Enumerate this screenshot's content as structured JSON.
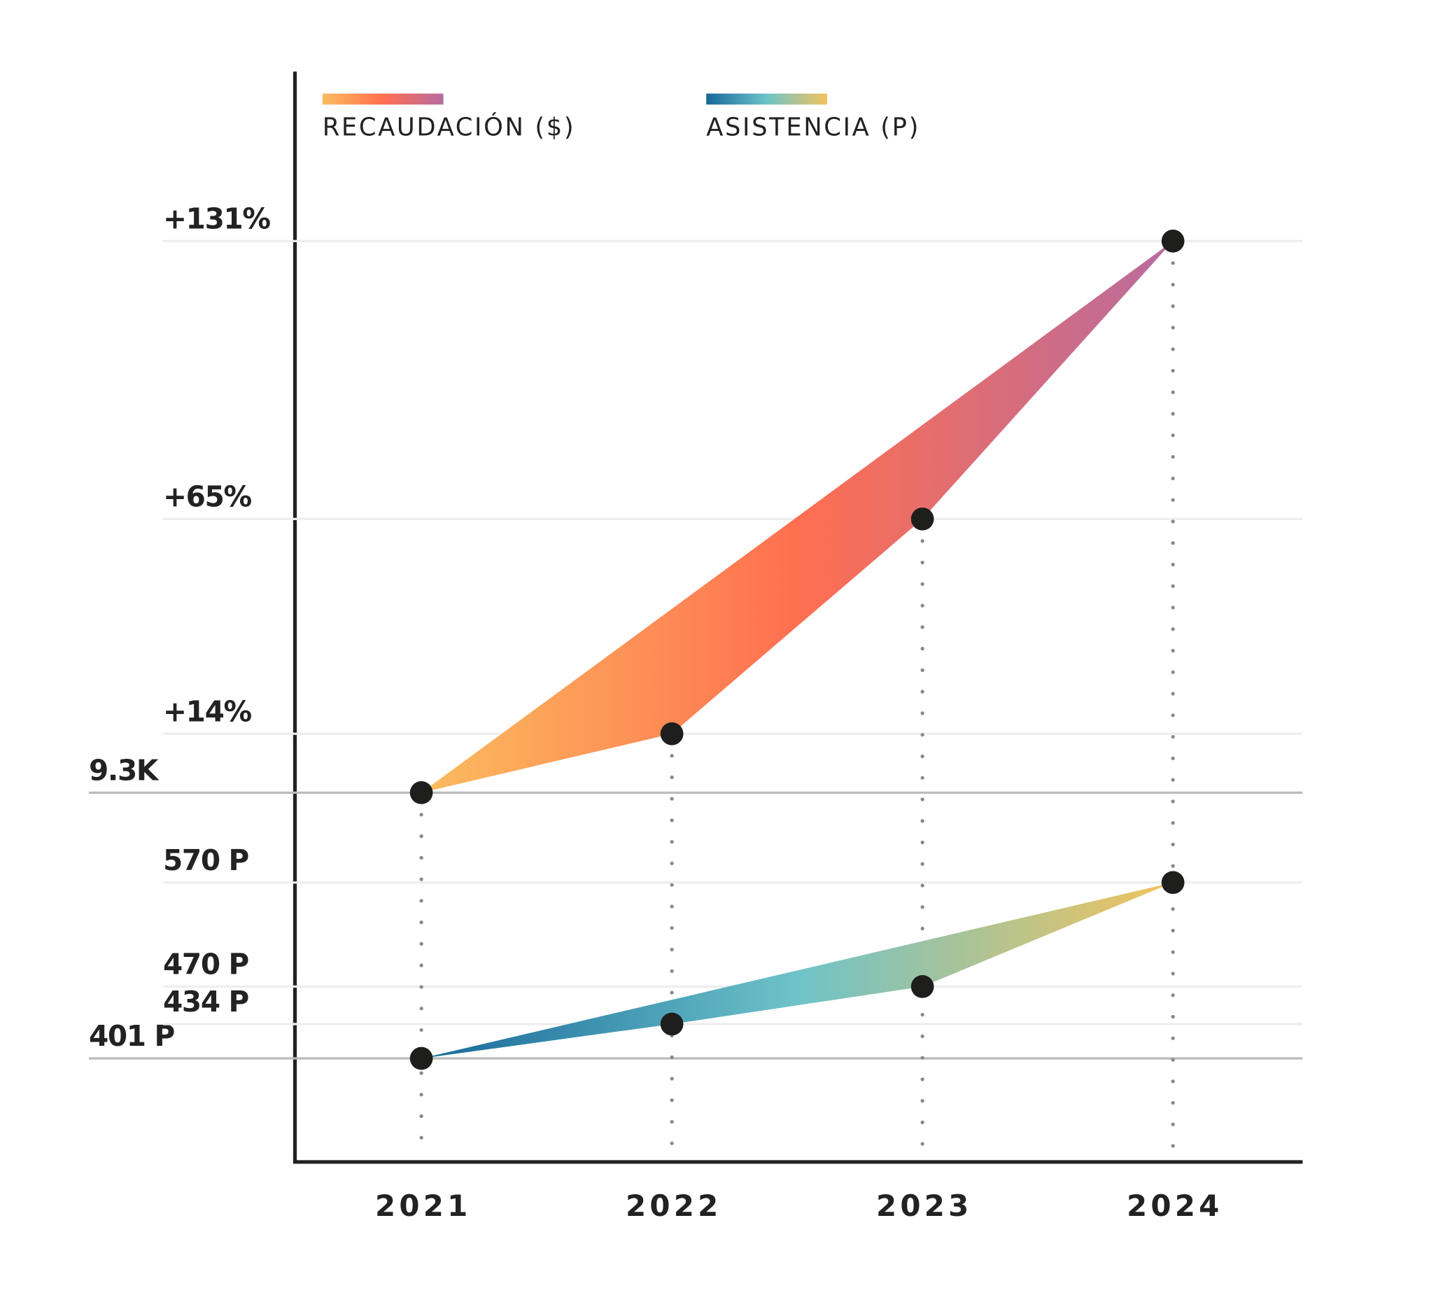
{
  "chart_data": {
    "type": "ribbon",
    "categories": [
      "2021",
      "2022",
      "2023",
      "2024"
    ],
    "series": [
      {
        "name": "RECAUDACIÓN ($)",
        "color": [
          "#fbbc5e",
          "#ff6f50",
          "#b86b9f"
        ],
        "values": [
          0,
          14,
          65,
          131
        ]
      },
      {
        "name": "ASISTENCIA (P)",
        "color": [
          "#16689a",
          "#6ec3c9",
          "#f3c35c"
        ],
        "values": [
          401,
          434,
          470,
          570
        ],
        "axis": "y2"
      }
    ],
    "ylim": [
      0,
      131
    ],
    "yticks": [
      {
        "value": 0,
        "label": "9.3K"
      },
      {
        "value": 14,
        "label": "+14%"
      },
      {
        "value": 65,
        "label": "+65%"
      },
      {
        "value": 131,
        "label": "+131%"
      }
    ],
    "y2lim": [
      401,
      570
    ],
    "y2ticks": [
      {
        "value": 401,
        "label": "401 P"
      },
      {
        "value": 434,
        "label": "434 P"
      },
      {
        "value": 470,
        "label": "470 P"
      },
      {
        "value": 570,
        "label": "570 P"
      }
    ],
    "grid": true
  }
}
